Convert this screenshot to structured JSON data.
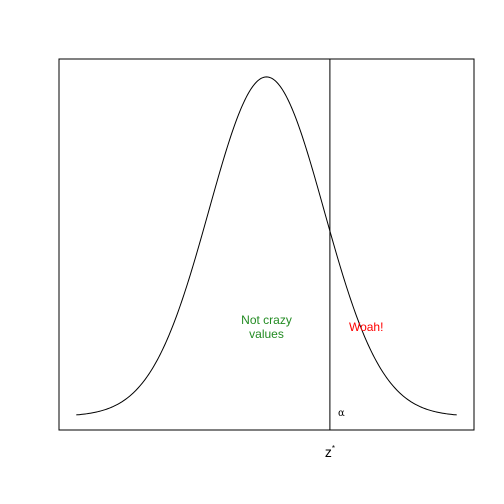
{
  "chart_data": {
    "type": "line",
    "title": "",
    "xlabel": "",
    "ylabel": "",
    "xlim": [
      -3.6,
      3.6
    ],
    "ylim": [
      -0.016,
      0.42
    ],
    "grid": false,
    "series": [
      {
        "curve": "normal-density",
        "mean": 0,
        "sd": 1,
        "x_range": [
          -3.3,
          3.3
        ],
        "color": "#000000"
      }
    ],
    "critical_value": {
      "x": 1.1,
      "label": "z*",
      "color": "#000000"
    },
    "annotations": [
      {
        "text": "Not crazy\nvalues",
        "x": 0,
        "y": 0.105,
        "color": "#228B22"
      },
      {
        "text": "Woah!",
        "x": 1.73,
        "y": 0.105,
        "color": "#FF0000"
      },
      {
        "text": "α",
        "x": 1.3,
        "y": 0.005,
        "color": "#000000"
      }
    ]
  }
}
